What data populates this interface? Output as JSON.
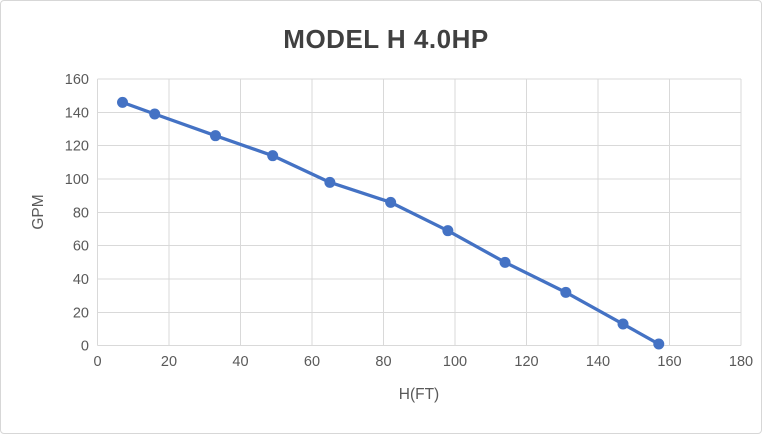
{
  "chart_data": {
    "type": "line",
    "title": "MODEL H 4.0HP",
    "xlabel": "H(FT)",
    "ylabel": "GPM",
    "x": [
      7,
      16,
      33,
      49,
      65,
      82,
      98,
      114,
      131,
      147,
      157
    ],
    "series": [
      {
        "name": "GPM",
        "values": [
          146,
          139,
          126,
          114,
          98,
          86,
          69,
          50,
          32,
          13,
          1
        ]
      }
    ],
    "xlim": [
      0,
      180
    ],
    "ylim": [
      0,
      160
    ],
    "xticks": [
      0,
      20,
      40,
      60,
      80,
      100,
      120,
      140,
      160,
      180
    ],
    "yticks": [
      0,
      20,
      40,
      60,
      80,
      100,
      120,
      140,
      160
    ],
    "grid": true,
    "legend_position": "none",
    "colors": {
      "series": "#4472C4",
      "gridline": "#D9D9D9",
      "tick_label": "#595959",
      "axis_title": "#595959",
      "title": "#404040",
      "background": "#FFFFFF",
      "frame_border": "#D7D7D7"
    }
  }
}
